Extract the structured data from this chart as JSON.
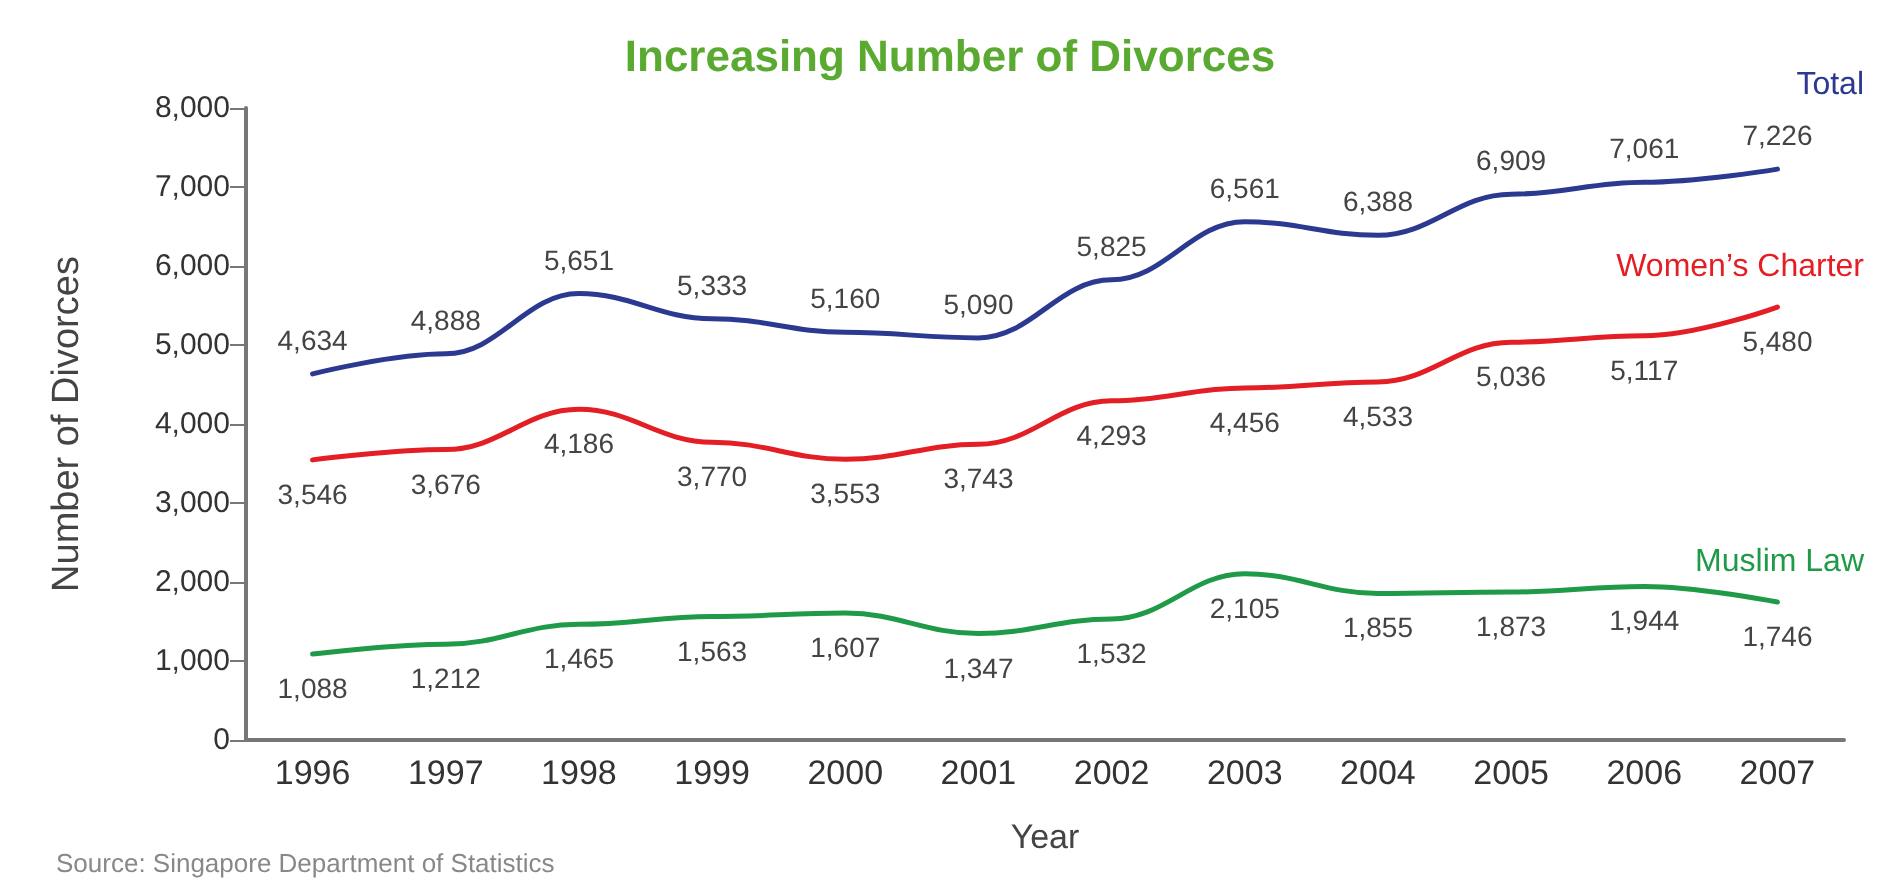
{
  "chart_data": {
    "type": "line",
    "title": "Increasing Number of Divorces",
    "xlabel": "Year",
    "ylabel": "Number of Divorces",
    "categories": [
      "1996",
      "1997",
      "1998",
      "1999",
      "2000",
      "2001",
      "2002",
      "2003",
      "2004",
      "2005",
      "2006",
      "2007"
    ],
    "series": [
      {
        "name": "Total",
        "color": "#2b3990",
        "values": [
          4634,
          4888,
          5651,
          5333,
          5160,
          5090,
          5825,
          6561,
          6388,
          6909,
          7061,
          7226
        ],
        "value_labels": [
          "4,634",
          "4,888",
          "5,651",
          "5,333",
          "5,160",
          "5,090",
          "5,825",
          "6,561",
          "6,388",
          "6,909",
          "7,061",
          "7,226"
        ]
      },
      {
        "name": "Women’s Charter",
        "color": "#e31e24",
        "values": [
          3546,
          3676,
          4186,
          3770,
          3553,
          3743,
          4293,
          4456,
          4533,
          5036,
          5117,
          5480
        ],
        "value_labels": [
          "3,546",
          "3,676",
          "4,186",
          "3,770",
          "3,553",
          "3,743",
          "4,293",
          "4,456",
          "4,533",
          "5,036",
          "5,117",
          "5,480"
        ]
      },
      {
        "name": "Muslim Law",
        "color": "#1f9a48",
        "values": [
          1088,
          1212,
          1465,
          1563,
          1607,
          1347,
          1532,
          2105,
          1855,
          1873,
          1944,
          1746
        ],
        "value_labels": [
          "1,088",
          "1,212",
          "1,465",
          "1,563",
          "1,607",
          "1,347",
          "1,532",
          "2,105",
          "1,855",
          "1,873",
          "1,944",
          "1,746"
        ]
      }
    ],
    "ylim": [
      0,
      8000
    ],
    "yticks": [
      0,
      {
        "value": 1000,
        "label": "1,000"
      },
      {
        "value": 2000,
        "label": "2,000"
      },
      {
        "value": 3000,
        "label": "3,000"
      },
      {
        "value": 4000,
        "label": "4,000"
      },
      {
        "value": 5000,
        "label": "5,000"
      },
      {
        "value": 6000,
        "label": "6,000"
      },
      {
        "value": 7000,
        "label": "7,000"
      },
      {
        "value": 8000,
        "label": "8,000"
      }
    ],
    "grid": false,
    "legend": false,
    "marker": "none",
    "line_style": "solid",
    "annotations": [
      "Source: Singapore Department of Statistics"
    ]
  }
}
